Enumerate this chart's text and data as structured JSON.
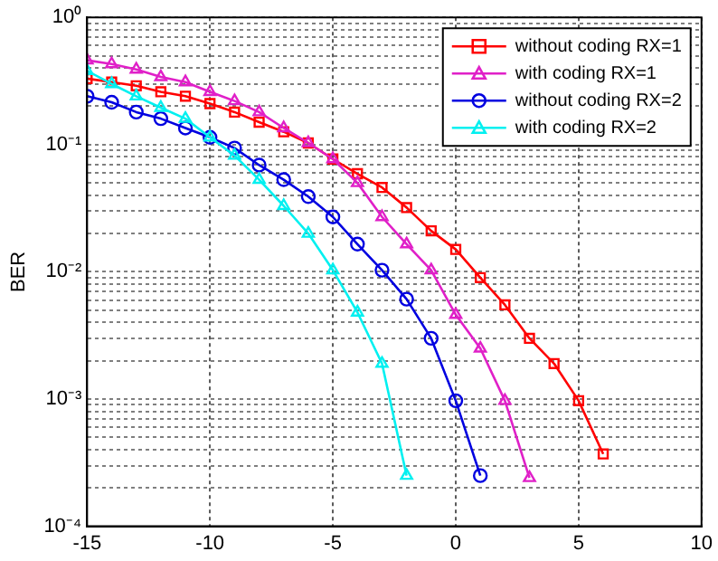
{
  "chart_data": {
    "type": "line",
    "ylabel": "BER",
    "log": "y",
    "grid": true,
    "legend": "top right",
    "line_style": "solid",
    "x": [
      -15,
      -14,
      -13,
      -12,
      -11,
      -10,
      -9,
      -8,
      -7,
      -6,
      -5,
      -4,
      -3,
      -2,
      -1,
      0,
      1,
      2,
      3,
      4,
      5,
      6
    ],
    "xlim": [
      -15,
      10
    ],
    "xticks": [
      -15,
      -10,
      -5,
      0,
      5,
      10
    ],
    "ylim": [
      0.0001,
      1
    ],
    "yticks": [
      {
        "value": 0.0001,
        "label": "10⁻⁴"
      },
      {
        "value": 0.0002,
        "label": null
      },
      {
        "value": 0.0003,
        "label": null
      },
      {
        "value": 0.0004,
        "label": null
      },
      {
        "value": 0.0005,
        "label": null
      },
      {
        "value": 0.0006,
        "label": null
      },
      {
        "value": 0.0007,
        "label": null
      },
      {
        "value": 0.0008,
        "label": null
      },
      {
        "value": 0.0009,
        "label": null
      },
      {
        "value": 0.001,
        "label": "10⁻³"
      },
      {
        "value": 0.002,
        "label": null
      },
      {
        "value": 0.003,
        "label": null
      },
      {
        "value": 0.004,
        "label": null
      },
      {
        "value": 0.005,
        "label": null
      },
      {
        "value": 0.006,
        "label": null
      },
      {
        "value": 0.007,
        "label": null
      },
      {
        "value": 0.008,
        "label": null
      },
      {
        "value": 0.009,
        "label": null
      },
      {
        "value": 0.01,
        "label": "10⁻²"
      },
      {
        "value": 0.02,
        "label": null
      },
      {
        "value": 0.03,
        "label": null
      },
      {
        "value": 0.04,
        "label": null
      },
      {
        "value": 0.05,
        "label": null
      },
      {
        "value": 0.06,
        "label": null
      },
      {
        "value": 0.07,
        "label": null
      },
      {
        "value": 0.08,
        "label": null
      },
      {
        "value": 0.09,
        "label": null
      },
      {
        "value": 0.1,
        "label": "10⁻¹"
      },
      {
        "value": 0.2,
        "label": null
      },
      {
        "value": 0.3,
        "label": null
      },
      {
        "value": 0.4,
        "label": null
      },
      {
        "value": 0.5,
        "label": null
      },
      {
        "value": 0.6,
        "label": null
      },
      {
        "value": 0.7,
        "label": null
      },
      {
        "value": 0.8,
        "label": null
      },
      {
        "value": 0.9,
        "label": null
      },
      {
        "value": 1,
        "label": "10⁰"
      }
    ],
    "series": [
      {
        "name": "without coding RX=1",
        "color": "#ff0000",
        "marker": "square",
        "values": [
          0.33,
          0.31,
          0.29,
          0.26,
          0.24,
          0.21,
          0.18,
          0.15,
          0.126,
          0.103,
          0.077,
          0.059,
          0.046,
          0.032,
          0.021,
          0.015,
          0.009,
          0.0055,
          0.003,
          0.0019,
          0.00097,
          0.00037
        ]
      },
      {
        "name": "with coding RX=1",
        "color": "#e020c8",
        "marker": "triangle",
        "x": [
          -15,
          -14,
          -13,
          -12,
          -11,
          -10,
          -9,
          -8,
          -7,
          -6,
          -5,
          -4,
          -3,
          -2,
          -1,
          0,
          1,
          2,
          3
        ],
        "values": [
          0.46,
          0.43,
          0.39,
          0.34,
          0.31,
          0.26,
          0.22,
          0.18,
          0.135,
          0.103,
          0.077,
          0.05,
          0.027,
          0.0165,
          0.0103,
          0.0046,
          0.0025,
          0.00097,
          0.00024
        ]
      },
      {
        "name": "without coding RX=2",
        "color": "#0000e0",
        "marker": "circle",
        "x": [
          -15,
          -14,
          -13,
          -12,
          -11,
          -10,
          -9,
          -8,
          -7,
          -6,
          -5,
          -4,
          -3,
          -2,
          -1,
          0,
          1
        ],
        "values": [
          0.24,
          0.215,
          0.18,
          0.16,
          0.135,
          0.114,
          0.094,
          0.069,
          0.053,
          0.039,
          0.027,
          0.0165,
          0.0103,
          0.0061,
          0.003,
          0.00097,
          0.00025
        ]
      },
      {
        "name": "with coding RX=2",
        "color": "#00f0f0",
        "marker": "triangle",
        "x": [
          -15,
          -14,
          -13,
          -12,
          -11,
          -10,
          -9,
          -8,
          -7,
          -6,
          -5,
          -4,
          -3,
          -2
        ],
        "values": [
          0.38,
          0.3,
          0.24,
          0.195,
          0.16,
          0.114,
          0.082,
          0.053,
          0.033,
          0.02,
          0.0103,
          0.0048,
          0.0019,
          0.00025
        ]
      }
    ]
  }
}
